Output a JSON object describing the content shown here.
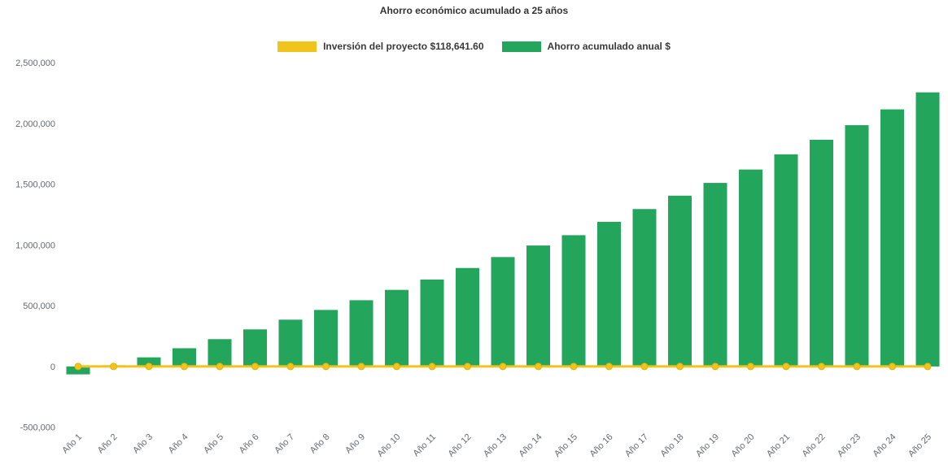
{
  "chart_data": {
    "type": "bar",
    "title": "Ahorro económico acumulado a 25 años",
    "categories": [
      "Año 1",
      "Año 2",
      "Año 3",
      "Año 4",
      "Año 5",
      "Año 6",
      "Año 7",
      "Año 8",
      "Año 9",
      "Año 10",
      "Año 11",
      "Año 12",
      "Año 13",
      "Año 14",
      "Año 15",
      "Año 16",
      "Año 17",
      "Año 18",
      "Año 19",
      "Año 20",
      "Año 21",
      "Año 22",
      "Año 23",
      "Año 24",
      "Año 25"
    ],
    "series": [
      {
        "name": "Inversión del proyecto $118,641.60",
        "type": "line",
        "color": "#f0c41a",
        "marker": "circle",
        "investment_amount": 118641.6,
        "plotted_value": 0
      },
      {
        "name": "Ahorro acumulado anual $",
        "type": "bar",
        "color": "#24a55c",
        "values": [
          -65000,
          10000,
          75000,
          150000,
          225000,
          305000,
          385000,
          465000,
          545000,
          630000,
          715000,
          810000,
          900000,
          995000,
          1080000,
          1190000,
          1295000,
          1405000,
          1510000,
          1620000,
          1745000,
          1865000,
          1985000,
          2115000,
          2255000
        ]
      }
    ],
    "ylim": [
      -500000,
      2500000
    ],
    "y_ticks": [
      2500000,
      2000000,
      1500000,
      1000000,
      500000,
      0,
      -500000
    ],
    "y_tick_labels": [
      "2,500,000",
      "2,000,000",
      "1,500,000",
      "1,000,000",
      "500,000",
      "0",
      "-500,000"
    ],
    "grid": false,
    "legend_position": "top",
    "xlabel": "",
    "ylabel": ""
  },
  "colors": {
    "background": "#ffffff",
    "title_text": "#333333",
    "axis_text": "#65696d",
    "investment": "#f0c41a",
    "savings": "#24a55c"
  }
}
